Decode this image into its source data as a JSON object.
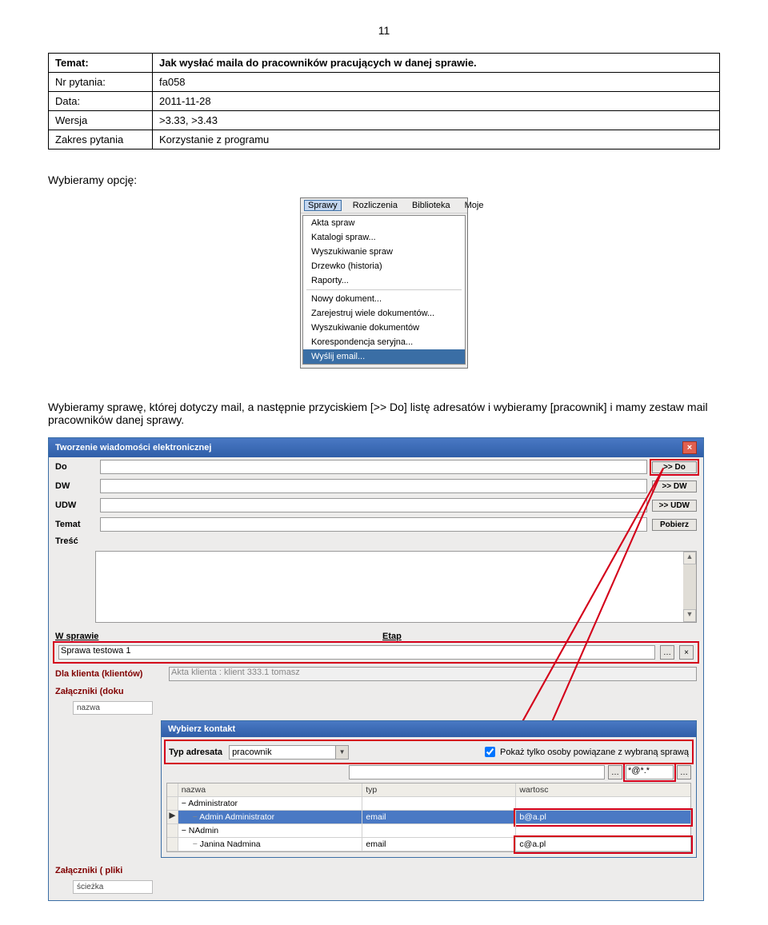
{
  "page_number": "11",
  "meta": {
    "temat_label": "Temat:",
    "temat_value": "Jak wysłać maila do pracowników pracujących w danej sprawie.",
    "nr_label": "Nr pytania:",
    "nr_value": "fa058",
    "data_label": "Data:",
    "data_value": "2011-11-28",
    "wersja_label": "Wersja",
    "wersja_value": ">3.33, >3.43",
    "zakres_label": "Zakres pytania",
    "zakres_value": "Korzystanie z programu"
  },
  "para1": "Wybieramy opcję:",
  "menu": {
    "bar": [
      "Sprawy",
      "Rozliczenia",
      "Biblioteka",
      "Moje"
    ],
    "items": [
      "Akta spraw",
      "Katalogi spraw...",
      "Wyszukiwanie spraw",
      "Drzewko (historia)",
      "Raporty...",
      "__sep__",
      "Nowy dokument...",
      "Zarejestruj wiele dokumentów...",
      "Wyszukiwanie dokumentów",
      "Korespondencja seryjna...",
      "Wyślij email..."
    ],
    "highlight": "Wyślij email..."
  },
  "para2": "Wybieramy sprawę, której dotyczy mail, a następnie przyciskiem [>> Do] listę adresatów i wybieramy [pracownik] i mamy zestaw mail pracowników danej sprawy.",
  "mail": {
    "title": "Tworzenie wiadomości elektronicznej",
    "do_label": "Do",
    "do_btn": ">> Do",
    "dw_label": "DW",
    "dw_btn": ">> DW",
    "udw_label": "UDW",
    "udw_btn": ">> UDW",
    "temat_label": "Temat",
    "pobierz_btn": "Pobierz",
    "tresc_label": "Treść",
    "wsprawie_hdr": "W sprawie",
    "etap_hdr": "Etap",
    "sprawa_value": "Sprawa testowa 1",
    "akta_placeholder": "Akta klienta : klient 333.1 tomasz",
    "dla_klienta_label": "Dla klienta (klientów)",
    "zalaczniki_doku_label": "Załączniki (doku",
    "nazwa_col": "nazwa",
    "zalaczniki_pliki_label": "Załączniki ( pliki",
    "sciezka_col": "ścieżka"
  },
  "dlg": {
    "title": "Wybierz kontakt",
    "typ_label": "Typ adresata",
    "typ_value": "pracownik",
    "checkbox_label": "Pokaż tylko osoby powiązane z wybraną sprawą",
    "filter_value": "*@*.*",
    "cols": {
      "nazwa": "nazwa",
      "typ": "typ",
      "wartosc": "wartosc"
    },
    "rows": [
      {
        "nazwa": "Administrator",
        "typ": "",
        "wartosc": "",
        "group": true
      },
      {
        "nazwa": "Admin Administrator",
        "typ": "email",
        "wartosc": "b@a.pl",
        "sel": true
      },
      {
        "nazwa": "NAdmin",
        "typ": "",
        "wartosc": "",
        "group": true
      },
      {
        "nazwa": "Janina Nadmina",
        "typ": "email",
        "wartosc": "c@a.pl"
      }
    ]
  }
}
